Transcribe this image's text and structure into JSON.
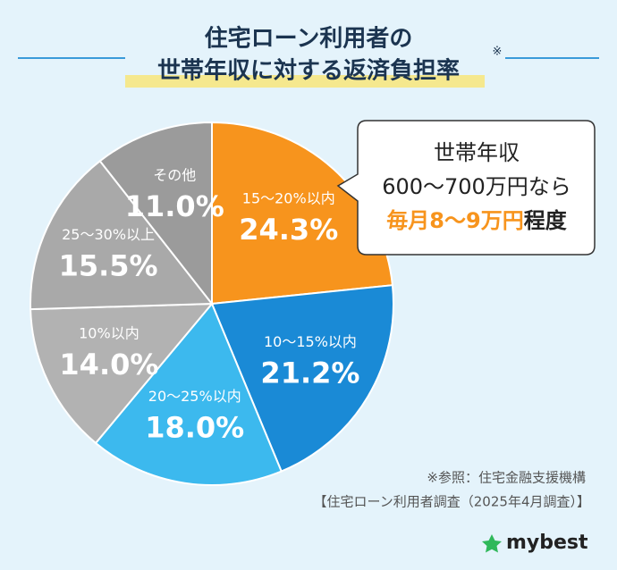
{
  "chart_data": {
    "type": "pie",
    "title_lines": [
      "住宅ローン利用者の",
      "世帯年収に対する返済負担率"
    ],
    "title_note": "※",
    "categories": [
      "15〜20%以内",
      "10〜15%以内",
      "20〜25%以内",
      "10%以内",
      "25〜30%以上",
      "その他"
    ],
    "values": [
      24.3,
      21.2,
      18.0,
      14.0,
      15.5,
      11.0
    ],
    "value_labels": [
      "24.3%",
      "21.2%",
      "18.0%",
      "14.0%",
      "15.5%",
      "11.0%"
    ],
    "colors": [
      "#f7941d",
      "#1a8ad6",
      "#3cb9ee",
      "#b2b2b2",
      "#a9a9a9",
      "#9b9b9b"
    ],
    "callout": {
      "lines": [
        "世帯年収",
        "600〜700万円なら"
      ],
      "highlight": "毎月8〜9万円",
      "suffix": "程度"
    },
    "source_lines": [
      "※参照：住宅金融支援機構",
      "【住宅ローン利用者調査（2025年4月調査）】"
    ],
    "brand": "mybest"
  }
}
